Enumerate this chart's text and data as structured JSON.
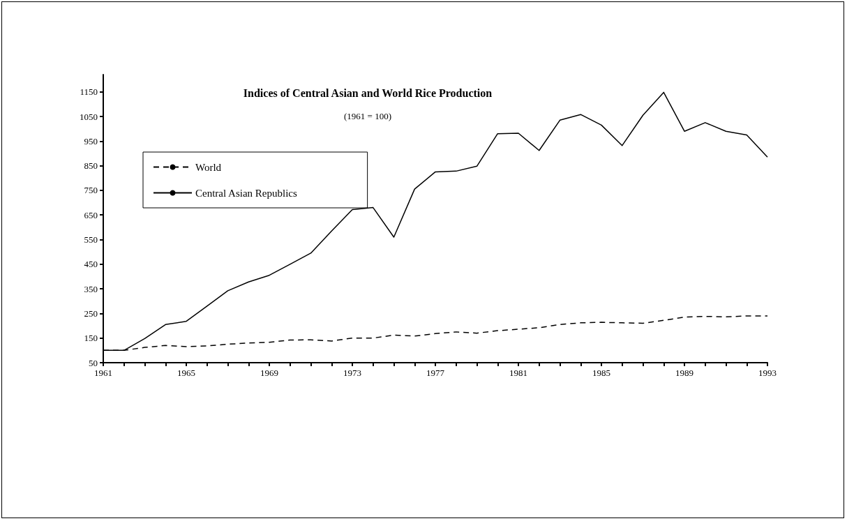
{
  "chart_data": {
    "type": "line",
    "title": "Indices of Central Asian and World Rice Production",
    "subtitle": "(1961 = 100)",
    "x": [
      1961,
      1962,
      1963,
      1964,
      1965,
      1966,
      1967,
      1968,
      1969,
      1970,
      1971,
      1972,
      1973,
      1974,
      1975,
      1976,
      1977,
      1978,
      1979,
      1980,
      1981,
      1982,
      1983,
      1984,
      1985,
      1986,
      1987,
      1988,
      1989,
      1990,
      1991,
      1992,
      1993
    ],
    "series": [
      {
        "name": "World",
        "color": "#000000",
        "line_style": "dashed",
        "values": [
          100,
          100,
          112,
          120,
          115,
          118,
          125,
          130,
          133,
          142,
          143,
          138,
          150,
          150,
          162,
          158,
          168,
          175,
          170,
          180,
          186,
          192,
          205,
          212,
          214,
          212,
          210,
          222,
          235,
          238,
          236,
          240,
          240
        ]
      },
      {
        "name": "Central Asian Republics",
        "color": "#000000",
        "line_style": "solid",
        "values": [
          100,
          100,
          148,
          205,
          218,
          280,
          342,
          378,
          405,
          450,
          495,
          585,
          672,
          680,
          560,
          755,
          825,
          828,
          848,
          980,
          982,
          912,
          1035,
          1058,
          1015,
          932,
          1055,
          1148,
          990,
          1025,
          990,
          975,
          885
        ]
      }
    ],
    "xlim": [
      1961,
      1993
    ],
    "xticks": [
      1961,
      {
        "value": 1962,
        "label": null
      },
      {
        "value": 1963,
        "label": null
      },
      {
        "value": 1964,
        "label": null
      },
      1965,
      {
        "value": 1966,
        "label": null
      },
      {
        "value": 1967,
        "label": null
      },
      {
        "value": 1968,
        "label": null
      },
      1969,
      {
        "value": 1970,
        "label": null
      },
      {
        "value": 1971,
        "label": null
      },
      {
        "value": 1972,
        "label": null
      },
      1973,
      {
        "value": 1974,
        "label": null
      },
      {
        "value": 1975,
        "label": null
      },
      {
        "value": 1976,
        "label": null
      },
      1977,
      {
        "value": 1978,
        "label": null
      },
      {
        "value": 1979,
        "label": null
      },
      {
        "value": 1980,
        "label": null
      },
      1981,
      {
        "value": 1982,
        "label": null
      },
      {
        "value": 1983,
        "label": null
      },
      {
        "value": 1984,
        "label": null
      },
      1985,
      {
        "value": 1986,
        "label": null
      },
      {
        "value": 1987,
        "label": null
      },
      {
        "value": 1988,
        "label": null
      },
      1989,
      {
        "value": 1990,
        "label": null
      },
      {
        "value": 1991,
        "label": null
      },
      {
        "value": 1992,
        "label": null
      },
      1993
    ],
    "ylim": [
      50,
      1220
    ],
    "yticks": [
      50,
      150,
      250,
      350,
      450,
      550,
      650,
      750,
      850,
      950,
      1050,
      1150
    ],
    "grid": false,
    "legend": "top left",
    "marker": "none"
  }
}
